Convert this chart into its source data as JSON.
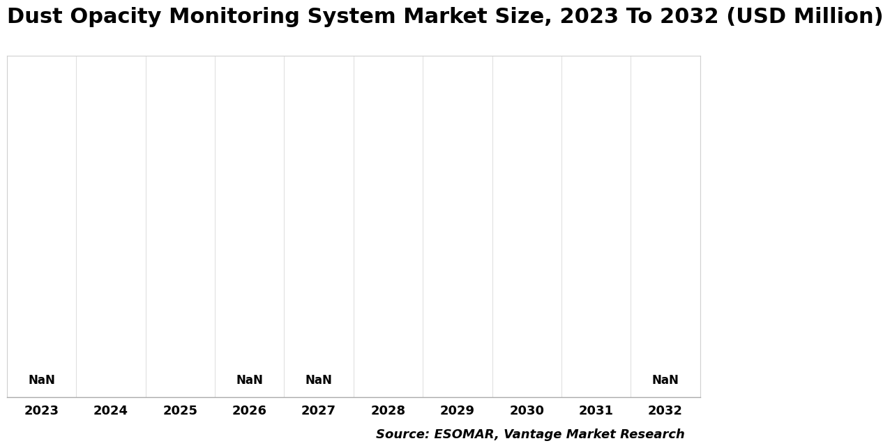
{
  "title": "Dust Opacity Monitoring System Market Size, 2023 To 2032 (USD Million)",
  "years": [
    2023,
    2024,
    2025,
    2026,
    2027,
    2028,
    2029,
    2030,
    2031,
    2032
  ],
  "nan_label_years": [
    2023,
    2026,
    2027,
    2032
  ],
  "background_color": "#ffffff",
  "grid_color": "#e0e0e0",
  "border_color": "#d0d0d0",
  "source_text": "Source: ESOMAR, Vantage Market Research",
  "title_fontsize": 22,
  "source_fontsize": 13,
  "tick_fontsize": 13,
  "nan_fontsize": 12
}
